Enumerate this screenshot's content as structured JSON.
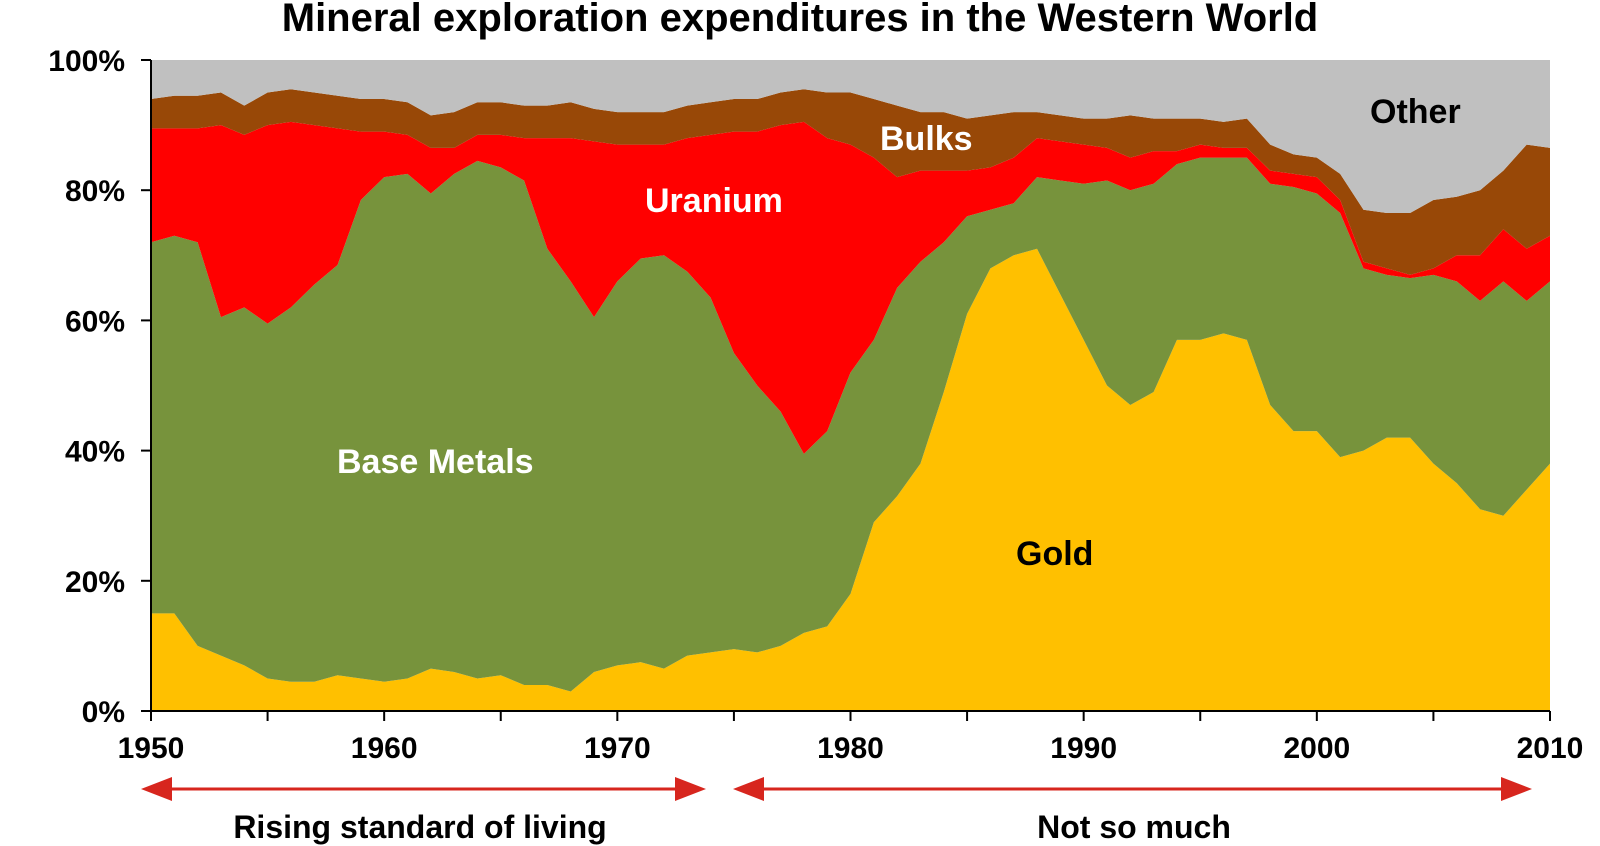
{
  "chart_data": {
    "type": "area",
    "stacked": "percent",
    "title": "Mineral exploration expenditures in the Western World",
    "xlabel": "",
    "ylabel": "",
    "xlim": [
      1950,
      2010
    ],
    "ylim": [
      0,
      100
    ],
    "x_ticks": [
      "1950",
      "1960",
      "1970",
      "1980",
      "1990",
      "2000",
      "2010"
    ],
    "y_ticks": [
      "0%",
      "20%",
      "40%",
      "60%",
      "80%",
      "100%"
    ],
    "grid": false,
    "legend": "none",
    "x": [
      1950,
      1951,
      1952,
      1953,
      1954,
      1955,
      1956,
      1957,
      1958,
      1959,
      1960,
      1961,
      1962,
      1963,
      1964,
      1965,
      1966,
      1967,
      1968,
      1969,
      1970,
      1971,
      1972,
      1973,
      1974,
      1975,
      1976,
      1977,
      1978,
      1979,
      1980,
      1981,
      1982,
      1983,
      1984,
      1985,
      1986,
      1987,
      1988,
      1989,
      1990,
      1991,
      1992,
      1993,
      1994,
      1995,
      1996,
      1997,
      1998,
      1999,
      2000,
      2001,
      2002,
      2003,
      2004,
      2005,
      2006,
      2007,
      2008,
      2009,
      2010
    ],
    "series": [
      {
        "name": "Gold",
        "color": "#ffc000",
        "values": [
          15,
          15,
          10,
          8.5,
          7,
          5,
          4.5,
          4.5,
          5.5,
          5,
          4.5,
          5,
          6.5,
          6,
          5,
          5.5,
          4,
          4,
          3,
          6,
          7,
          7.5,
          6.5,
          8.5,
          9,
          9.5,
          9,
          10,
          12,
          13,
          18,
          29,
          33,
          38,
          49,
          61,
          68,
          70,
          71,
          64,
          57,
          50,
          47,
          49,
          57,
          57,
          58,
          57,
          47,
          43,
          43,
          39,
          40,
          42,
          42,
          38,
          35,
          31,
          30,
          34,
          38
        ]
      },
      {
        "name": "Base Metals",
        "color": "#77933c",
        "values": [
          57,
          58,
          62,
          52,
          55,
          54.5,
          57.5,
          61,
          63,
          73.5,
          77.5,
          77.5,
          73,
          76.5,
          79.5,
          78,
          77.5,
          67,
          63,
          54.5,
          59,
          62,
          63.5,
          59,
          54.5,
          45.5,
          41,
          36,
          27.5,
          30,
          34,
          28,
          32,
          31,
          23,
          15,
          9,
          8,
          11,
          17.5,
          24,
          31.5,
          33,
          32,
          27,
          28,
          27,
          28,
          34,
          37.5,
          36.5,
          37.5,
          28,
          25,
          24.5,
          29,
          31,
          32,
          36,
          29,
          28
        ]
      },
      {
        "name": "Uranium",
        "color": "#ff0000",
        "values": [
          17.5,
          16.5,
          17.5,
          29.5,
          26.5,
          30.5,
          28.5,
          24.5,
          21,
          10.5,
          7,
          6,
          7,
          4,
          4,
          5,
          6.5,
          17,
          22,
          27,
          21,
          17.5,
          17,
          20.5,
          25,
          34,
          39,
          44,
          51,
          45,
          35,
          28,
          17,
          14,
          11,
          7,
          6.5,
          7,
          6,
          6,
          6,
          5,
          5,
          5,
          2,
          2,
          1.5,
          1.5,
          2,
          2,
          2.5,
          2,
          1,
          1,
          0.5,
          1,
          4,
          7,
          8,
          8,
          7
        ]
      },
      {
        "name": "Bulks",
        "color": "#984807",
        "values": [
          4.5,
          5,
          5,
          5,
          4.5,
          5,
          5,
          5,
          5,
          5,
          5,
          5,
          5,
          5.5,
          5,
          5,
          5,
          5,
          5.5,
          5,
          5,
          5,
          5,
          5,
          5,
          5,
          5,
          5,
          5,
          7,
          8,
          9,
          11,
          9,
          9,
          8,
          8,
          7,
          4,
          4,
          4,
          4.5,
          6.5,
          5,
          5,
          4,
          4,
          4.5,
          4,
          3,
          3,
          4,
          8,
          8.5,
          9.5,
          10.5,
          9,
          10,
          9,
          16,
          13.5
        ]
      },
      {
        "name": "Other",
        "color": "#c0c0c0",
        "values": [
          6,
          5.5,
          5.5,
          5,
          7,
          5,
          4.5,
          5,
          5.5,
          6,
          6,
          6.5,
          8.5,
          8,
          6.5,
          6.5,
          7,
          7,
          6.5,
          7.5,
          8,
          8,
          8,
          7,
          6.5,
          6,
          6,
          5,
          4.5,
          5,
          5,
          6,
          7,
          8,
          8,
          9,
          8.5,
          8,
          8,
          8.5,
          9,
          9,
          8.5,
          9,
          9,
          9,
          9.5,
          9,
          13,
          14.5,
          15,
          17.5,
          23,
          23.5,
          23.5,
          21.5,
          21,
          20,
          17,
          13,
          13.5
        ]
      }
    ]
  },
  "labels": {
    "base_metals": "Base Metals",
    "uranium": "Uranium",
    "bulks": "Bulks",
    "other": "Other",
    "gold": "Gold"
  },
  "annotations": {
    "left": "Rising standard of living",
    "right": "Not so much",
    "arrow_color": "#d7261e"
  }
}
